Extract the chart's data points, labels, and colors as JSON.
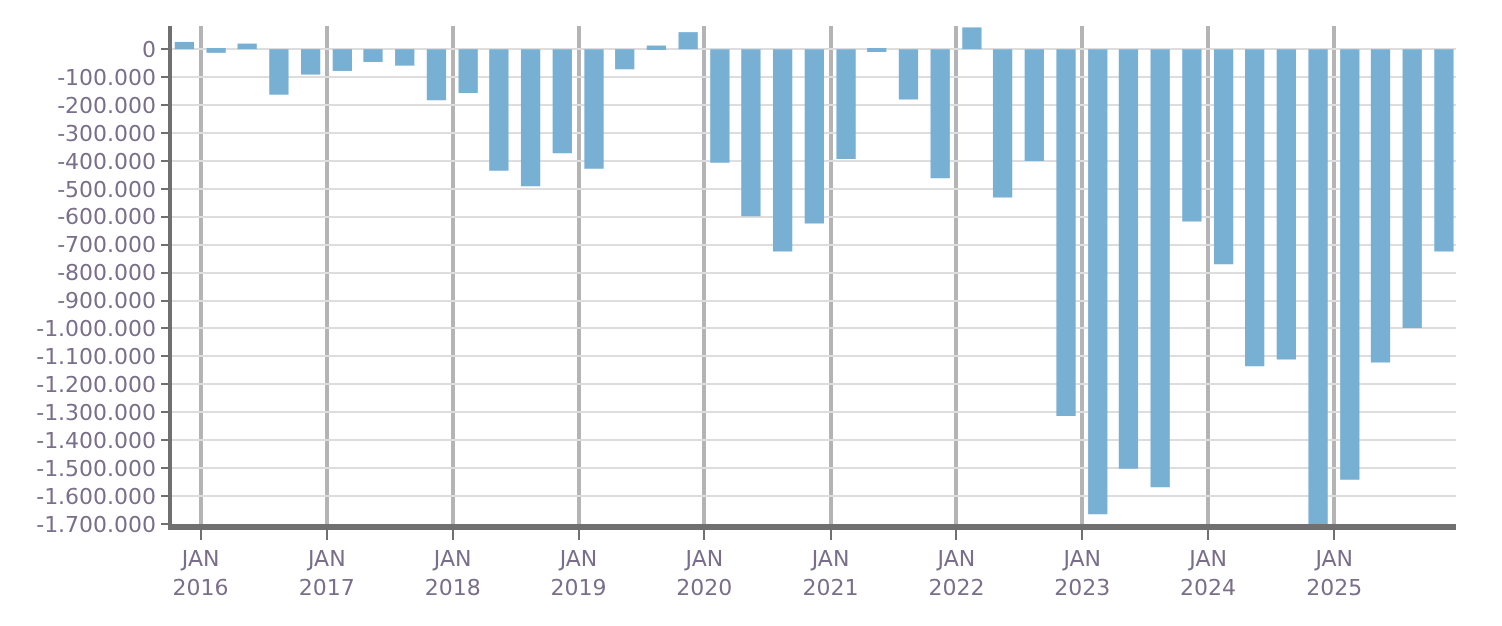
{
  "chart_data": {
    "type": "bar",
    "color": "#78b0d4",
    "grid": true,
    "x": [
      "2015-11-15",
      "2016-02-15",
      "2016-05-15",
      "2016-08-15",
      "2016-11-15",
      "2017-02-15",
      "2017-05-15",
      "2017-08-15",
      "2017-11-15",
      "2018-02-15",
      "2018-05-15",
      "2018-08-15",
      "2018-11-15",
      "2019-02-15",
      "2019-05-15",
      "2019-08-15",
      "2019-11-15",
      "2020-02-15",
      "2020-05-15",
      "2020-08-15",
      "2020-11-15",
      "2021-02-15",
      "2021-05-15",
      "2021-08-15",
      "2021-11-15",
      "2022-02-15",
      "2022-05-15",
      "2022-08-15",
      "2022-11-15",
      "2023-02-15",
      "2023-05-15",
      "2023-08-15",
      "2023-11-15",
      "2024-02-15",
      "2024-05-15",
      "2024-08-15",
      "2024-11-15",
      "2025-02-15",
      "2025-05-15",
      "2025-08-15",
      "2025-11-15"
    ],
    "values": [
      26000,
      -13000,
      20000,
      -163000,
      -91000,
      -78000,
      -46000,
      -59000,
      -183000,
      -157000,
      -435000,
      -491000,
      -373000,
      -428000,
      -72000,
      13000,
      61000,
      -407000,
      -598000,
      -724000,
      -624000,
      -393000,
      -5000,
      -180000,
      -462000,
      78000,
      -531000,
      -400000,
      -1313000,
      -1665000,
      -1502000,
      -1568000,
      -617000,
      -770000,
      -1135000,
      -1111000,
      -1700000,
      -1542000,
      -1122000,
      -998000,
      -724000
    ],
    "xlim": [
      "2015-10-10",
      "2025-12-20"
    ],
    "xticks": [
      {
        "value": "2016-01-01",
        "label": "JAN\n2016"
      },
      {
        "value": "2017-01-01",
        "label": "JAN\n2017"
      },
      {
        "value": "2018-01-01",
        "label": "JAN\n2018"
      },
      {
        "value": "2019-01-01",
        "label": "JAN\n2019"
      },
      {
        "value": "2020-01-01",
        "label": "JAN\n2020"
      },
      {
        "value": "2021-01-01",
        "label": "JAN\n2021"
      },
      {
        "value": "2022-01-01",
        "label": "JAN\n2022"
      },
      {
        "value": "2023-01-01",
        "label": "JAN\n2023"
      },
      {
        "value": "2024-01-01",
        "label": "JAN\n2024"
      },
      {
        "value": "2025-01-01",
        "label": "JAN\n2025"
      }
    ],
    "ylim": [
      -1700000,
      83000
    ],
    "yticks": [
      {
        "value": 0,
        "label": "0"
      },
      {
        "value": -100000,
        "label": "-100.000"
      },
      {
        "value": -200000,
        "label": "-200.000"
      },
      {
        "value": -300000,
        "label": "-300.000"
      },
      {
        "value": -400000,
        "label": "-400.000"
      },
      {
        "value": -500000,
        "label": "-500.000"
      },
      {
        "value": -600000,
        "label": "-600.000"
      },
      {
        "value": -700000,
        "label": "-700.000"
      },
      {
        "value": -800000,
        "label": "-800.000"
      },
      {
        "value": -900000,
        "label": "-900.000"
      },
      {
        "value": -1000000,
        "label": "-1.000.000"
      },
      {
        "value": -1100000,
        "label": "-1.100.000"
      },
      {
        "value": -1200000,
        "label": "-1.200.000"
      },
      {
        "value": -1300000,
        "label": "-1.300.000"
      },
      {
        "value": -1400000,
        "label": "-1.400.000"
      },
      {
        "value": -1500000,
        "label": "-1.500.000"
      },
      {
        "value": -1600000,
        "label": "-1.600.000"
      },
      {
        "value": -1700000,
        "label": "-1.700.000"
      }
    ]
  }
}
